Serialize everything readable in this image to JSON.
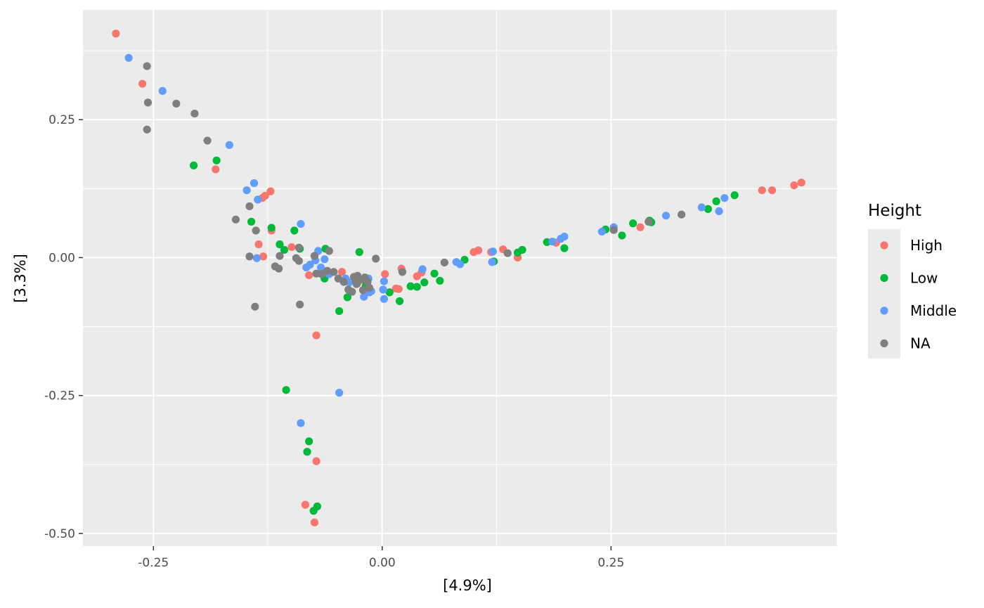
{
  "chart_data": {
    "type": "scatter",
    "xlabel": "[4.9%]",
    "ylabel": "[3.3%]",
    "xlim": [
      -0.327,
      0.497
    ],
    "ylim": [
      -0.523,
      0.449
    ],
    "x_ticks": [
      {
        "value": -0.25,
        "label": "-0.25"
      },
      {
        "value": 0.0,
        "label": "0.00"
      },
      {
        "value": 0.25,
        "label": "0.25"
      }
    ],
    "y_ticks": [
      {
        "value": 0.25,
        "label": "0.25"
      },
      {
        "value": 0.0,
        "label": "0.00"
      },
      {
        "value": -0.25,
        "label": "-0.25"
      },
      {
        "value": -0.5,
        "label": "-0.50"
      }
    ],
    "grid": true,
    "legend": {
      "title": "Height",
      "placement": "right",
      "entries": [
        {
          "label": "High",
          "color": "#F8766D"
        },
        {
          "label": "Low",
          "color": "#00BA38"
        },
        {
          "label": "Middle",
          "color": "#619CFF"
        },
        {
          "label": "NA",
          "color": "#7F7F7F"
        }
      ]
    },
    "series": [
      {
        "name": "High",
        "color": "#F8766D",
        "points": [
          [
            -0.291,
            0.406
          ],
          [
            -0.262,
            0.315
          ],
          [
            -0.182,
            0.16
          ],
          [
            -0.128,
            0.112
          ],
          [
            -0.131,
            0.108
          ],
          [
            -0.122,
            0.12
          ],
          [
            -0.121,
            0.049
          ],
          [
            -0.135,
            0.024
          ],
          [
            -0.13,
            0.002
          ],
          [
            -0.099,
            0.019
          ],
          [
            -0.08,
            -0.032
          ],
          [
            -0.072,
            -0.141
          ],
          [
            -0.072,
            -0.369
          ],
          [
            -0.084,
            -0.448
          ],
          [
            -0.074,
            -0.48
          ],
          [
            -0.044,
            -0.026
          ],
          [
            -0.027,
            -0.046
          ],
          [
            0.003,
            -0.03
          ],
          [
            0.021,
            -0.02
          ],
          [
            0.015,
            -0.056
          ],
          [
            0.018,
            -0.057
          ],
          [
            0.038,
            -0.034
          ],
          [
            0.043,
            -0.027
          ],
          [
            0.1,
            0.01
          ],
          [
            0.105,
            0.013
          ],
          [
            0.119,
            0.01
          ],
          [
            0.132,
            0.015
          ],
          [
            0.148,
            0.0
          ],
          [
            0.19,
            0.027
          ],
          [
            0.282,
            0.055
          ],
          [
            0.415,
            0.122
          ],
          [
            0.426,
            0.122
          ],
          [
            0.45,
            0.131
          ],
          [
            0.458,
            0.136
          ]
        ]
      },
      {
        "name": "Low",
        "color": "#00BA38",
        "points": [
          [
            -0.206,
            0.167
          ],
          [
            -0.181,
            0.176
          ],
          [
            -0.143,
            0.065
          ],
          [
            -0.121,
            0.054
          ],
          [
            -0.096,
            0.049
          ],
          [
            -0.112,
            0.024
          ],
          [
            -0.107,
            0.014
          ],
          [
            -0.09,
            0.016
          ],
          [
            -0.105,
            -0.24
          ],
          [
            -0.08,
            -0.333
          ],
          [
            -0.082,
            -0.352
          ],
          [
            -0.075,
            -0.459
          ],
          [
            -0.071,
            -0.451
          ],
          [
            -0.062,
            0.016
          ],
          [
            -0.063,
            -0.038
          ],
          [
            -0.047,
            -0.097
          ],
          [
            -0.038,
            -0.072
          ],
          [
            -0.025,
            0.01
          ],
          [
            -0.018,
            -0.051
          ],
          [
            0.008,
            -0.063
          ],
          [
            0.019,
            -0.079
          ],
          [
            0.031,
            -0.052
          ],
          [
            0.038,
            -0.053
          ],
          [
            0.046,
            -0.045
          ],
          [
            0.057,
            -0.029
          ],
          [
            0.063,
            -0.042
          ],
          [
            0.09,
            -0.004
          ],
          [
            0.122,
            -0.007
          ],
          [
            0.148,
            0.009
          ],
          [
            0.153,
            0.014
          ],
          [
            0.18,
            0.028
          ],
          [
            0.199,
            0.017
          ],
          [
            0.244,
            0.051
          ],
          [
            0.262,
            0.04
          ],
          [
            0.274,
            0.062
          ],
          [
            0.292,
            0.067
          ],
          [
            0.294,
            0.064
          ],
          [
            0.356,
            0.088
          ],
          [
            0.365,
            0.102
          ],
          [
            0.385,
            0.113
          ]
        ]
      },
      {
        "name": "Middle",
        "color": "#619CFF",
        "points": [
          [
            -0.277,
            0.362
          ],
          [
            -0.24,
            0.302
          ],
          [
            -0.167,
            0.204
          ],
          [
            -0.148,
            0.122
          ],
          [
            -0.14,
            0.135
          ],
          [
            -0.136,
            0.105
          ],
          [
            -0.089,
            0.061
          ],
          [
            -0.137,
            -0.001
          ],
          [
            -0.083,
            -0.018
          ],
          [
            -0.07,
            0.012
          ],
          [
            -0.063,
            -0.003
          ],
          [
            -0.079,
            -0.013
          ],
          [
            -0.073,
            -0.005
          ],
          [
            -0.067,
            -0.018
          ],
          [
            -0.058,
            -0.03
          ],
          [
            -0.089,
            -0.3
          ],
          [
            -0.047,
            -0.245
          ],
          [
            -0.04,
            -0.038
          ],
          [
            -0.036,
            -0.045
          ],
          [
            -0.02,
            -0.071
          ],
          [
            -0.015,
            -0.038
          ],
          [
            -0.014,
            -0.063
          ],
          [
            -0.012,
            -0.061
          ],
          [
            0.001,
            -0.058
          ],
          [
            0.002,
            -0.043
          ],
          [
            0.002,
            -0.075
          ],
          [
            0.044,
            -0.021
          ],
          [
            0.081,
            -0.008
          ],
          [
            0.085,
            -0.012
          ],
          [
            0.12,
            -0.008
          ],
          [
            0.121,
            0.011
          ],
          [
            0.186,
            0.029
          ],
          [
            0.195,
            0.034
          ],
          [
            0.199,
            0.038
          ],
          [
            0.24,
            0.047
          ],
          [
            0.253,
            0.055
          ],
          [
            0.31,
            0.076
          ],
          [
            0.349,
            0.091
          ],
          [
            0.368,
            0.084
          ],
          [
            0.374,
            0.108
          ]
        ]
      },
      {
        "name": "NA",
        "color": "#7F7F7F",
        "points": [
          [
            -0.257,
            0.347
          ],
          [
            -0.256,
            0.281
          ],
          [
            -0.257,
            0.232
          ],
          [
            -0.225,
            0.279
          ],
          [
            -0.205,
            0.261
          ],
          [
            -0.191,
            0.212
          ],
          [
            -0.16,
            0.069
          ],
          [
            -0.145,
            0.093
          ],
          [
            -0.138,
            0.049
          ],
          [
            -0.145,
            0.002
          ],
          [
            -0.139,
            -0.089
          ],
          [
            -0.117,
            -0.016
          ],
          [
            -0.113,
            -0.02
          ],
          [
            -0.112,
            0.003
          ],
          [
            -0.094,
            -0.001
          ],
          [
            -0.091,
            -0.006
          ],
          [
            -0.09,
            -0.085
          ],
          [
            -0.091,
            0.018
          ],
          [
            -0.074,
            0.003
          ],
          [
            -0.072,
            -0.029
          ],
          [
            -0.066,
            -0.03
          ],
          [
            -0.06,
            -0.024
          ],
          [
            -0.058,
            0.012
          ],
          [
            -0.053,
            -0.026
          ],
          [
            -0.048,
            -0.038
          ],
          [
            -0.042,
            -0.044
          ],
          [
            -0.037,
            -0.058
          ],
          [
            -0.033,
            -0.062
          ],
          [
            -0.031,
            -0.035
          ],
          [
            -0.029,
            -0.042
          ],
          [
            -0.028,
            -0.048
          ],
          [
            -0.027,
            -0.033
          ],
          [
            -0.023,
            -0.04
          ],
          [
            -0.021,
            -0.059
          ],
          [
            -0.019,
            -0.036
          ],
          [
            -0.016,
            -0.044
          ],
          [
            -0.014,
            -0.055
          ],
          [
            -0.007,
            -0.002
          ],
          [
            0.022,
            -0.026
          ],
          [
            0.068,
            -0.009
          ],
          [
            0.137,
            0.008
          ],
          [
            0.253,
            0.05
          ],
          [
            0.291,
            0.065
          ],
          [
            0.327,
            0.078
          ]
        ]
      }
    ]
  }
}
